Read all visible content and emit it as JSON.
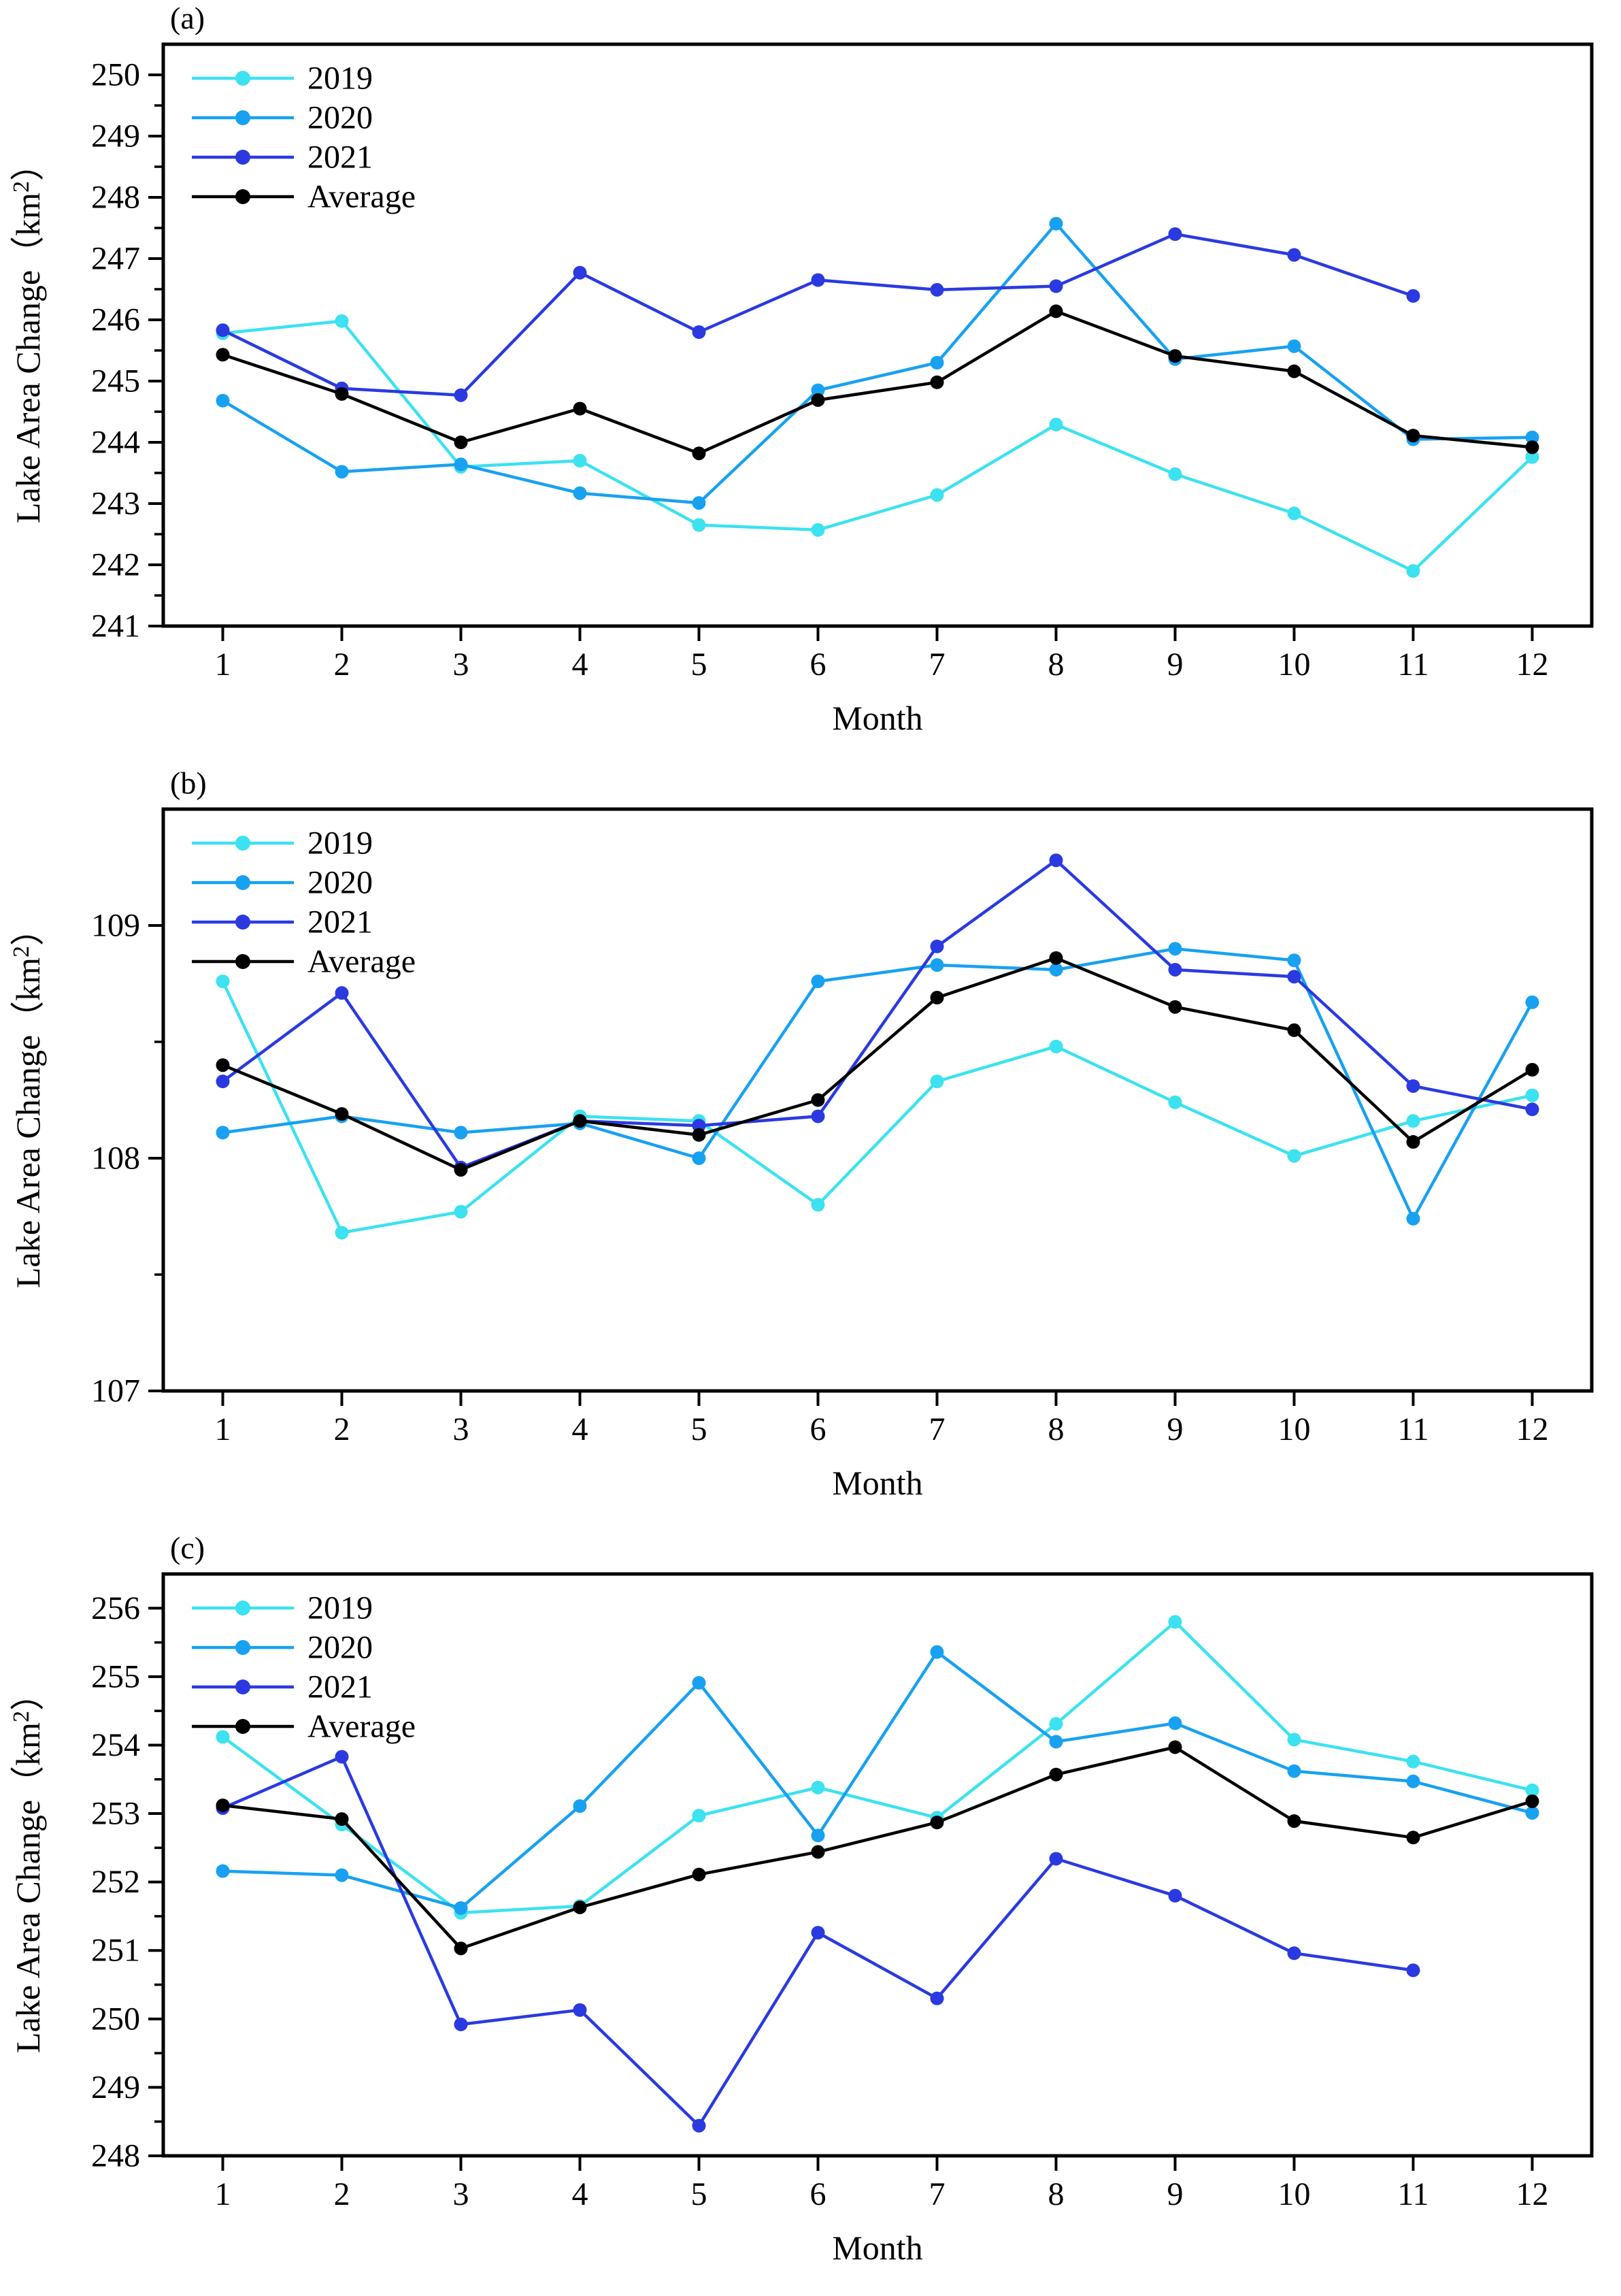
{
  "figure": {
    "background": "#ffffff",
    "axis_color": "#000000",
    "x_axis_title": "Month",
    "y_axis_title": "Lake Area Change（km²）",
    "legend_labels": [
      "2019",
      "2020",
      "2021",
      "Average"
    ],
    "series_colors": {
      "2019": "#3CE2EF",
      "2020": "#18A1F0",
      "2021": "#2A3AE0",
      "Average": "#000000"
    }
  },
  "chart_data": [
    {
      "type": "line",
      "panel_label": "(a)",
      "xlabel": "Month",
      "ylabel": "Lake Area Change（km²）",
      "legend_position": "top-left",
      "grid": false,
      "x": [
        1,
        2,
        3,
        4,
        5,
        6,
        7,
        8,
        9,
        10,
        11,
        12
      ],
      "ylim": [
        241,
        250.5
      ],
      "yticks": [
        241,
        242,
        243,
        244,
        245,
        246,
        247,
        248,
        249,
        250
      ],
      "minor_step": 0.5,
      "series": [
        {
          "name": "2019",
          "color": "#3CE2EF",
          "values": [
            245.78,
            245.98,
            243.6,
            243.7,
            242.65,
            242.57,
            243.14,
            244.29,
            243.48,
            242.84,
            241.9,
            243.76
          ]
        },
        {
          "name": "2020",
          "color": "#18A1F0",
          "values": [
            244.68,
            243.52,
            243.64,
            243.17,
            243.01,
            244.85,
            245.3,
            247.57,
            245.36,
            245.57,
            244.05,
            244.08
          ]
        },
        {
          "name": "2021",
          "color": "#2A3AE0",
          "values": [
            245.83,
            244.88,
            244.77,
            246.77,
            245.8,
            246.65,
            246.49,
            246.55,
            247.4,
            247.06,
            246.39,
            null
          ]
        },
        {
          "name": "Average",
          "color": "#000000",
          "values": [
            245.43,
            244.79,
            244.0,
            244.55,
            243.82,
            244.69,
            244.98,
            246.14,
            245.41,
            245.16,
            244.11,
            243.92
          ]
        }
      ]
    },
    {
      "type": "line",
      "panel_label": "(b)",
      "xlabel": "Month",
      "ylabel": "Lake Area Change（km²）",
      "legend_position": "top-left",
      "grid": false,
      "x": [
        1,
        2,
        3,
        4,
        5,
        6,
        7,
        8,
        9,
        10,
        11,
        12
      ],
      "ylim": [
        107,
        109.5
      ],
      "yticks": [
        107,
        108,
        109
      ],
      "minor_step": 0.5,
      "series": [
        {
          "name": "2019",
          "color": "#3CE2EF",
          "values": [
            108.76,
            107.68,
            107.77,
            108.18,
            108.16,
            107.8,
            108.33,
            108.48,
            108.24,
            108.01,
            108.16,
            108.27
          ]
        },
        {
          "name": "2020",
          "color": "#18A1F0",
          "values": [
            108.11,
            108.18,
            108.11,
            108.15,
            108.0,
            108.76,
            108.83,
            108.81,
            108.9,
            108.85,
            107.74,
            108.67
          ]
        },
        {
          "name": "2021",
          "color": "#2A3AE0",
          "values": [
            108.33,
            108.71,
            107.96,
            108.16,
            108.14,
            108.18,
            108.91,
            109.28,
            108.81,
            108.78,
            108.31,
            108.21
          ]
        },
        {
          "name": "Average",
          "color": "#000000",
          "values": [
            108.4,
            108.19,
            107.95,
            108.16,
            108.1,
            108.25,
            108.69,
            108.86,
            108.65,
            108.55,
            108.07,
            108.38
          ]
        }
      ]
    },
    {
      "type": "line",
      "panel_label": "(c)",
      "xlabel": "Month",
      "ylabel": "Lake Area Change（km²）",
      "legend_position": "top-left",
      "grid": false,
      "x": [
        1,
        2,
        3,
        4,
        5,
        6,
        7,
        8,
        9,
        10,
        11,
        12
      ],
      "ylim": [
        248,
        256.5
      ],
      "yticks": [
        248,
        249,
        250,
        251,
        252,
        253,
        254,
        255,
        256
      ],
      "minor_step": 0.5,
      "series": [
        {
          "name": "2019",
          "color": "#3CE2EF",
          "values": [
            254.12,
            252.84,
            251.55,
            251.65,
            252.97,
            253.38,
            252.94,
            254.31,
            255.8,
            254.08,
            253.76,
            253.34
          ]
        },
        {
          "name": "2020",
          "color": "#18A1F0",
          "values": [
            252.16,
            252.1,
            251.62,
            253.11,
            254.91,
            252.68,
            255.36,
            254.05,
            254.32,
            253.62,
            253.47,
            253.01
          ]
        },
        {
          "name": "2021",
          "color": "#2A3AE0",
          "values": [
            253.08,
            253.83,
            249.92,
            250.13,
            248.44,
            251.26,
            250.3,
            252.34,
            251.8,
            250.96,
            250.71,
            null
          ]
        },
        {
          "name": "Average",
          "color": "#000000",
          "values": [
            253.12,
            252.92,
            251.03,
            251.63,
            252.11,
            252.44,
            252.87,
            253.57,
            253.97,
            252.89,
            252.65,
            253.18
          ]
        }
      ]
    }
  ]
}
